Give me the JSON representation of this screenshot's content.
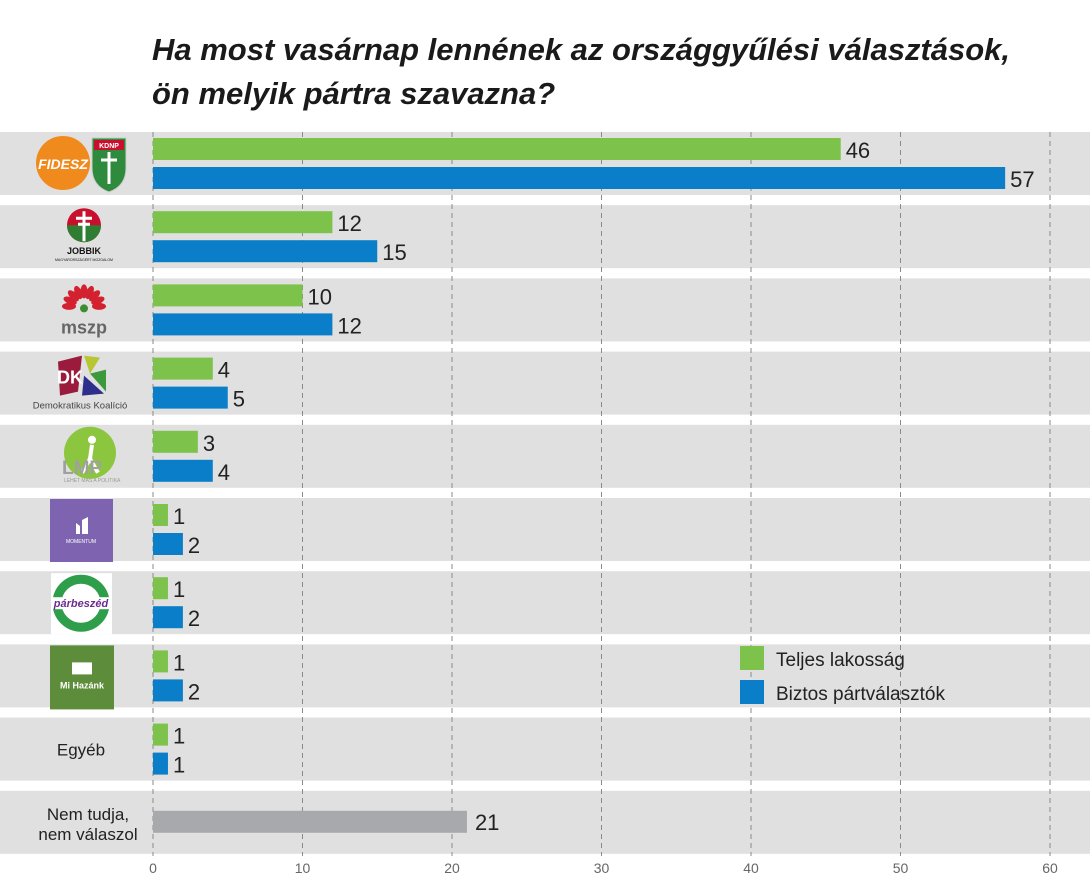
{
  "chart_data": {
    "type": "bar",
    "orientation": "horizontal",
    "title": "Ha most vasárnap lennének az országgyűlési választások, ön melyik pártra szavazna?",
    "categories": [
      "Fidesz-KDNP",
      "Jobbik",
      "MSZP",
      "Demokratikus Koalíció",
      "LMP",
      "Momentum",
      "Párbeszéd",
      "Mi Hazánk",
      "Egyéb",
      "Nem tudja, nem válaszol"
    ],
    "category_labels": {
      "Egyéb": "Egyéb",
      "Nem tudja, nem válaszol": [
        "Nem tudja,",
        "nem válaszol"
      ]
    },
    "logo_text": {
      "Fidesz-KDNP": [
        "FIDESZ",
        "KDNP"
      ],
      "Jobbik": [
        "JOBBIK",
        "MAGYARORSZÁGÉRT MOZGALOM"
      ],
      "MSZP": [
        "mszp"
      ],
      "Demokratikus Koalíció": [
        "DK",
        "Demokratikus Koalíció"
      ],
      "LMP": [
        "LMP",
        "LEHET MÁS A POLITIKA"
      ],
      "Momentum": [
        "MOMENTUM"
      ],
      "Párbeszéd": [
        "párbeszéd"
      ],
      "Mi Hazánk": [
        "Mi Hazánk"
      ]
    },
    "series": [
      {
        "name": "Teljes lakosság",
        "color": "#7dc24b",
        "values": [
          46,
          12,
          10,
          4,
          3,
          1,
          1,
          1,
          1,
          21
        ]
      },
      {
        "name": "Biztos pártválasztók",
        "color": "#0a7ec8",
        "values": [
          57,
          15,
          12,
          5,
          4,
          2,
          2,
          2,
          1,
          null
        ]
      }
    ],
    "undecided_color": "#a7a9ac",
    "xlim": [
      0,
      60
    ],
    "xticks": [
      0,
      10,
      20,
      30,
      40,
      50,
      60
    ],
    "grid": true,
    "legend": "right"
  }
}
